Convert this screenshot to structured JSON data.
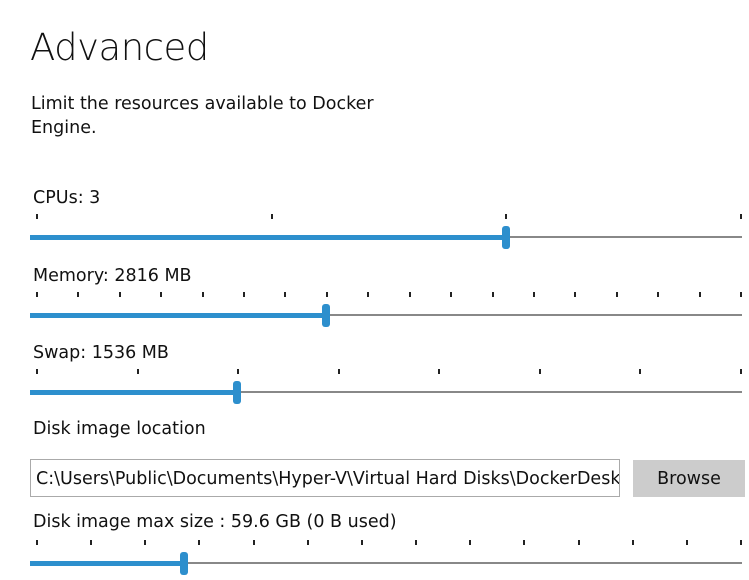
{
  "title": "Advanced",
  "description": "Limit the resources available to Docker Engine.",
  "accent": "#2d8fcd",
  "cpus": {
    "label": "CPUs: 3",
    "ticks": 4,
    "value_fraction": 0.667
  },
  "memory": {
    "label": "Memory: 2816 MB",
    "ticks": 18,
    "value_fraction": 0.412
  },
  "swap": {
    "label": "Swap: 1536 MB",
    "ticks": 8,
    "value_fraction": 0.286
  },
  "disk_location": {
    "label": "Disk image location",
    "value": "C:\\Users\\Public\\Documents\\Hyper-V\\Virtual Hard Disks\\DockerDesktop.vhdx",
    "browse_label": "Browse"
  },
  "disk_size": {
    "label": "Disk image max size : 59.6 GB (0 B  used)",
    "ticks": 14,
    "value_fraction": 0.21
  }
}
